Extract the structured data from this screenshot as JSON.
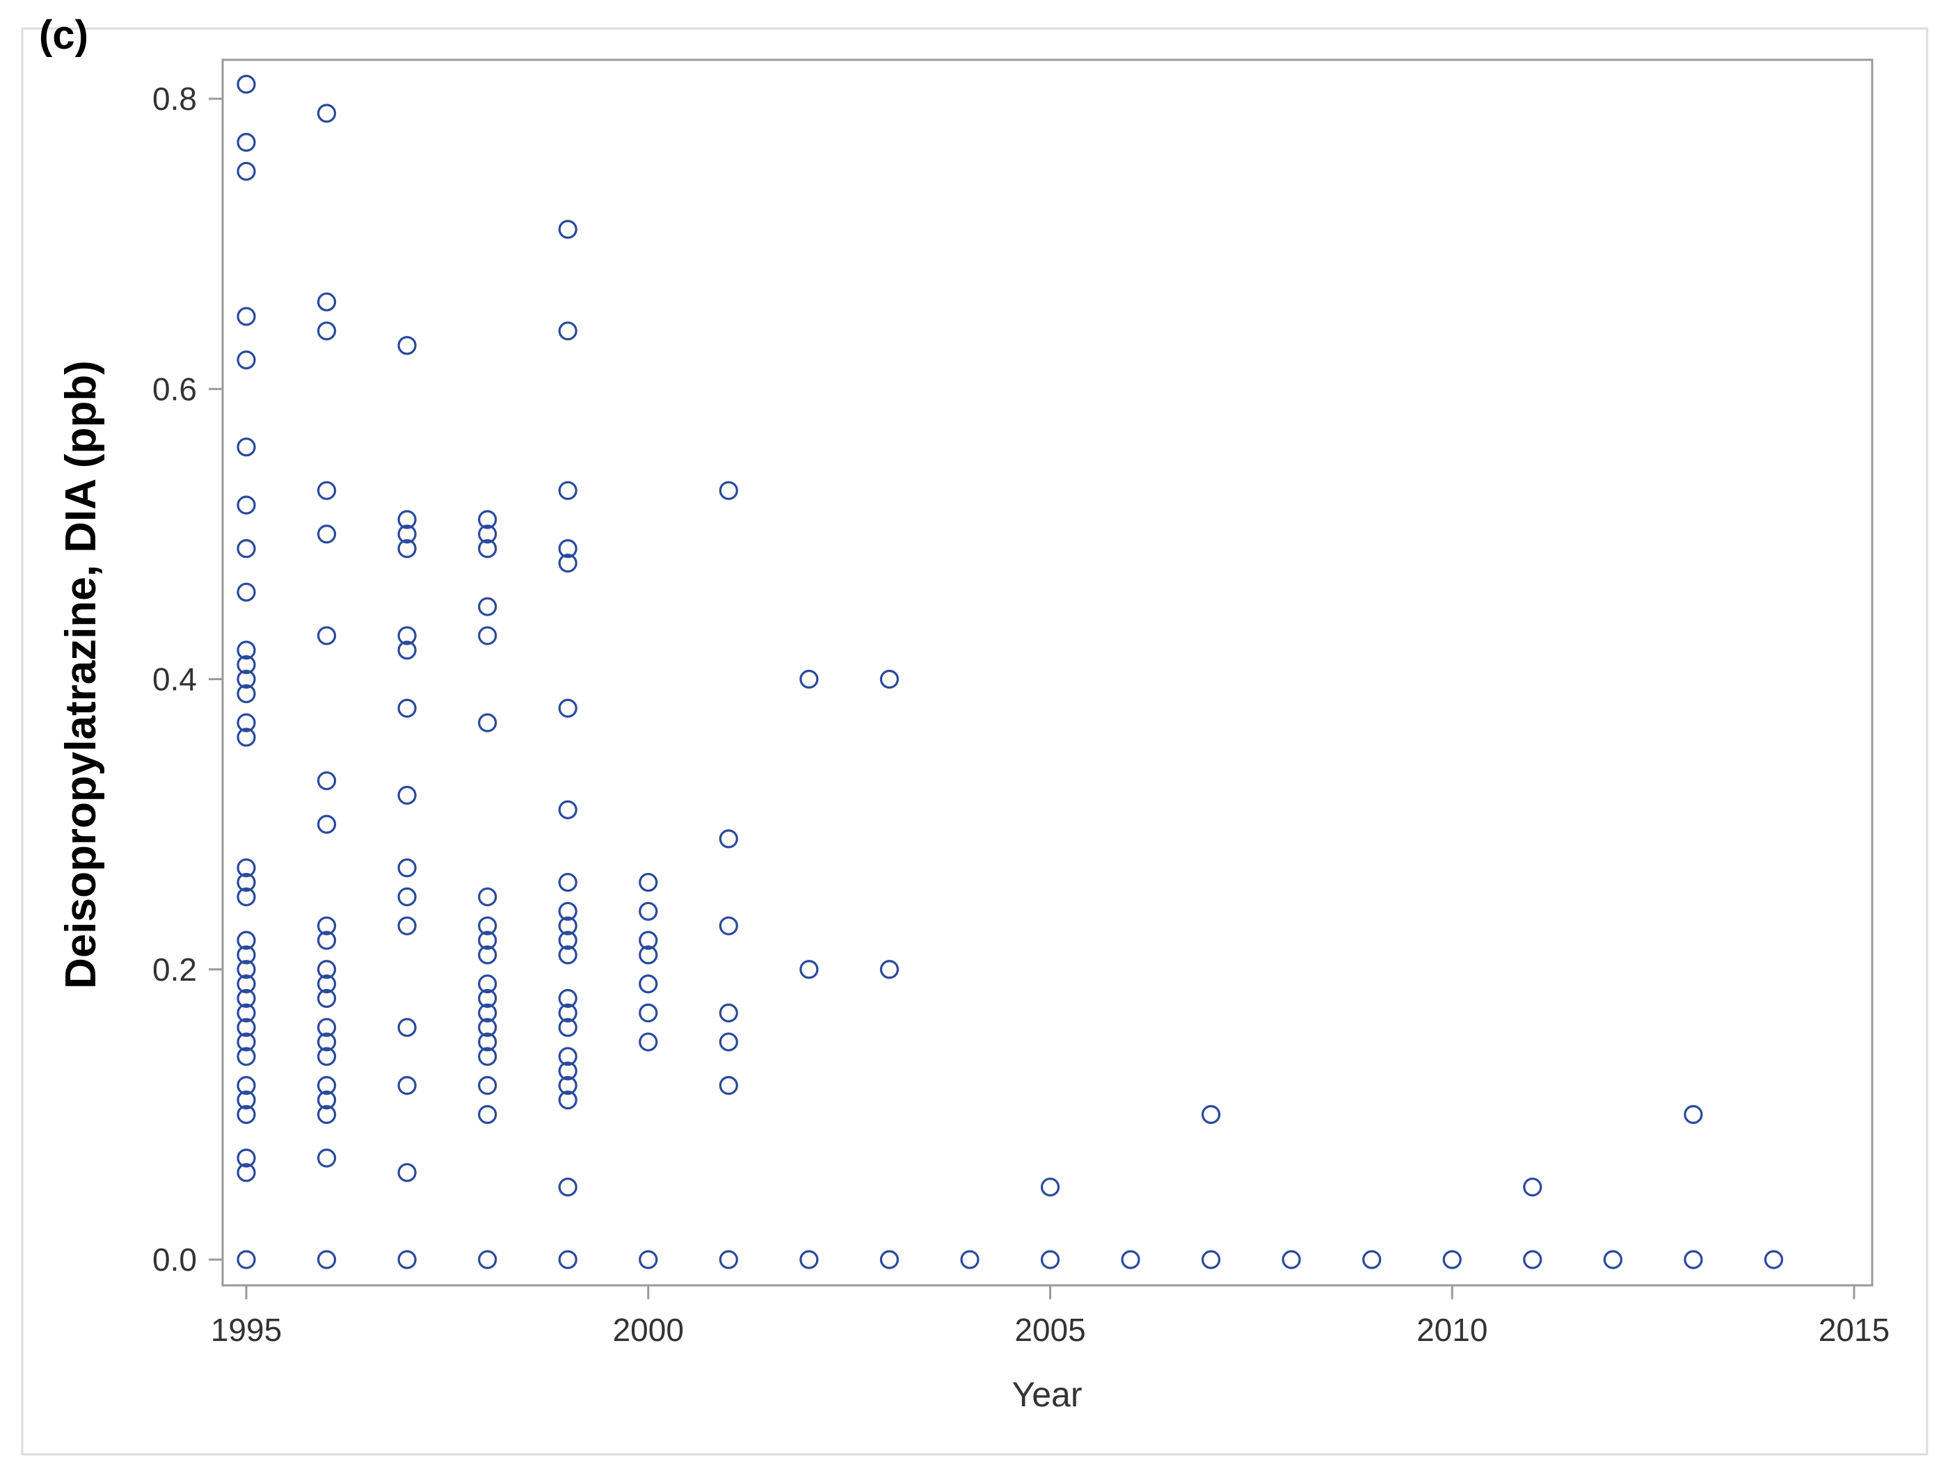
{
  "chart_data": {
    "type": "scatter",
    "panel_label": "(c)",
    "xlabel": "Year",
    "ylabel": "Deisopropylatrazine, DIA (ppb)",
    "xlim": [
      1995,
      2015
    ],
    "ylim": [
      0.0,
      0.8
    ],
    "xticks": [
      1995,
      2000,
      2005,
      2010,
      2015
    ],
    "yticks": [
      "0.0",
      "0.2",
      "0.4",
      "0.6",
      "0.8"
    ],
    "grid": false,
    "marker": "open-circle",
    "marker_color": "#2a4a9b",
    "points": [
      {
        "year": 1995,
        "values": [
          0.81,
          0.77,
          0.75,
          0.65,
          0.62,
          0.56,
          0.52,
          0.49,
          0.46,
          0.42,
          0.41,
          0.4,
          0.39,
          0.37,
          0.36,
          0.27,
          0.26,
          0.25,
          0.22,
          0.21,
          0.2,
          0.19,
          0.18,
          0.17,
          0.16,
          0.15,
          0.14,
          0.12,
          0.11,
          0.1,
          0.07,
          0.06,
          0.0
        ]
      },
      {
        "year": 1996,
        "values": [
          0.79,
          0.66,
          0.64,
          0.53,
          0.5,
          0.43,
          0.33,
          0.3,
          0.23,
          0.22,
          0.2,
          0.19,
          0.18,
          0.16,
          0.15,
          0.14,
          0.12,
          0.11,
          0.1,
          0.07,
          0.0
        ]
      },
      {
        "year": 1997,
        "values": [
          0.63,
          0.51,
          0.5,
          0.49,
          0.43,
          0.42,
          0.38,
          0.32,
          0.27,
          0.25,
          0.23,
          0.16,
          0.12,
          0.06,
          0.0
        ]
      },
      {
        "year": 1998,
        "values": [
          0.51,
          0.5,
          0.49,
          0.45,
          0.43,
          0.37,
          0.25,
          0.23,
          0.22,
          0.21,
          0.19,
          0.18,
          0.17,
          0.16,
          0.15,
          0.14,
          0.12,
          0.1,
          0.0
        ]
      },
      {
        "year": 1999,
        "values": [
          0.71,
          0.64,
          0.53,
          0.49,
          0.48,
          0.38,
          0.31,
          0.26,
          0.24,
          0.23,
          0.22,
          0.21,
          0.18,
          0.17,
          0.16,
          0.14,
          0.13,
          0.12,
          0.11,
          0.05,
          0.0
        ]
      },
      {
        "year": 2000,
        "values": [
          0.26,
          0.24,
          0.22,
          0.21,
          0.19,
          0.17,
          0.15,
          0.0
        ]
      },
      {
        "year": 2001,
        "values": [
          0.53,
          0.29,
          0.23,
          0.17,
          0.15,
          0.12,
          0.0
        ]
      },
      {
        "year": 2002,
        "values": [
          0.4,
          0.2,
          0.0
        ]
      },
      {
        "year": 2003,
        "values": [
          0.4,
          0.2,
          0.0
        ]
      },
      {
        "year": 2004,
        "values": [
          0.0
        ]
      },
      {
        "year": 2005,
        "values": [
          0.05,
          0.0
        ]
      },
      {
        "year": 2006,
        "values": [
          0.0
        ]
      },
      {
        "year": 2007,
        "values": [
          0.1,
          0.0
        ]
      },
      {
        "year": 2008,
        "values": [
          0.0
        ]
      },
      {
        "year": 2009,
        "values": [
          0.0
        ]
      },
      {
        "year": 2010,
        "values": [
          0.0
        ]
      },
      {
        "year": 2011,
        "values": [
          0.05,
          0.0
        ]
      },
      {
        "year": 2012,
        "values": [
          0.0
        ]
      },
      {
        "year": 2013,
        "values": [
          0.1,
          0.0
        ]
      },
      {
        "year": 2014,
        "values": [
          0.0
        ]
      }
    ]
  }
}
